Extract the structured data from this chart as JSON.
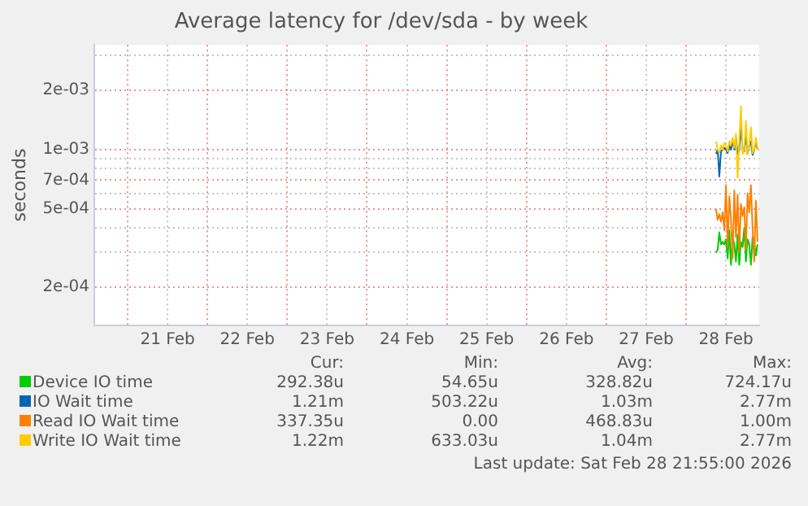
{
  "chart_data": {
    "type": "line",
    "title": "Average latency for /dev/sda - by week",
    "ylabel": "seconds",
    "log": "y",
    "grid": true,
    "legend": "bottom",
    "marker": "none",
    "line_style": "solid",
    "x": [
      "2026-02-28T09:00",
      "2026-02-28T09:30",
      "2026-02-28T10:00",
      "2026-02-28T10:30",
      "2026-02-28T11:00",
      "2026-02-28T11:30",
      "2026-02-28T12:00",
      "2026-02-28T12:30",
      "2026-02-28T13:00",
      "2026-02-28T13:30",
      "2026-02-28T14:00",
      "2026-02-28T14:30",
      "2026-02-28T15:00",
      "2026-02-28T15:30",
      "2026-02-28T16:00",
      "2026-02-28T16:30",
      "2026-02-28T17:00",
      "2026-02-28T17:30",
      "2026-02-28T18:00",
      "2026-02-28T18:30",
      "2026-02-28T19:00",
      "2026-02-28T19:30",
      "2026-02-28T20:00",
      "2026-02-28T20:30",
      "2026-02-28T21:00",
      "2026-02-28T21:30"
    ],
    "xlim": [
      "2026-02-20T14:00",
      "2026-02-28T22:00"
    ],
    "xticks": [
      {
        "value": "2026-02-21T00:00",
        "label": null
      },
      {
        "value": "2026-02-21T12:00",
        "label": "21 Feb"
      },
      {
        "value": "2026-02-22T00:00",
        "label": null
      },
      {
        "value": "2026-02-22T12:00",
        "label": "22 Feb"
      },
      {
        "value": "2026-02-23T00:00",
        "label": null
      },
      {
        "value": "2026-02-23T12:00",
        "label": "23 Feb"
      },
      {
        "value": "2026-02-24T00:00",
        "label": null
      },
      {
        "value": "2026-02-24T12:00",
        "label": "24 Feb"
      },
      {
        "value": "2026-02-25T00:00",
        "label": null
      },
      {
        "value": "2026-02-25T12:00",
        "label": "25 Feb"
      },
      {
        "value": "2026-02-26T00:00",
        "label": null
      },
      {
        "value": "2026-02-26T12:00",
        "label": "26 Feb"
      },
      {
        "value": "2026-02-27T00:00",
        "label": null
      },
      {
        "value": "2026-02-27T12:00",
        "label": "27 Feb"
      },
      {
        "value": "2026-02-28T00:00",
        "label": null
      },
      {
        "value": "2026-02-28T12:00",
        "label": "28 Feb"
      }
    ],
    "ylim": [
      0.000128,
      0.0034
    ],
    "yticks": [
      {
        "value": 0.0002,
        "label": "2e-04"
      },
      {
        "value": 0.0003,
        "label": null
      },
      {
        "value": 0.0004,
        "label": null
      },
      {
        "value": 0.0005,
        "label": "5e-04"
      },
      {
        "value": 0.0006,
        "label": null
      },
      {
        "value": 0.0007,
        "label": "7e-04"
      },
      {
        "value": 0.0008,
        "label": null
      },
      {
        "value": 0.0009,
        "label": null
      },
      {
        "value": 0.001,
        "label": "1e-03"
      },
      {
        "value": 0.002,
        "label": "2e-03"
      },
      {
        "value": 0.003,
        "label": null
      }
    ],
    "series": [
      {
        "name": "Device IO time",
        "color": "#00cc00",
        "values": [
          0.0003,
          0.00031,
          0.00038,
          0.00033,
          0.00034,
          0.00033,
          0.00035,
          0.00028,
          0.00039,
          0.00026,
          0.00036,
          0.00033,
          0.00027,
          0.00037,
          0.00026,
          0.00034,
          0.00032,
          0.0004,
          0.00027,
          0.00035,
          0.00033,
          0.00026,
          0.00036,
          0.00034,
          0.00029,
          0.00033
        ]
      },
      {
        "name": "IO Wait time",
        "color": "#0066b3",
        "values": [
          0.00095,
          0.001,
          0.00073,
          0.00098,
          0.001,
          0.00102,
          0.001,
          0.00096,
          0.00105,
          0.001,
          0.0011,
          0.001,
          0.00115,
          0.00095,
          0.001,
          0.0013,
          0.001,
          0.00098,
          0.0012,
          0.00095,
          0.00105,
          0.0011,
          0.00094,
          0.001,
          0.0011,
          0.001
        ]
      },
      {
        "name": "Read IO Wait time",
        "color": "#ff8000",
        "values": [
          0.0005,
          0.00044,
          0.00047,
          0.00043,
          0.00048,
          0.00039,
          0.00066,
          0.00032,
          0.00058,
          0.00044,
          0.00028,
          0.00062,
          0.00036,
          0.00059,
          0.0003,
          0.00053,
          0.00046,
          0.00051,
          0.00031,
          0.0006,
          0.00048,
          0.00066,
          0.0004,
          0.00027,
          0.00055,
          0.00034
        ]
      },
      {
        "name": "Write IO Wait time",
        "color": "#ffcc00",
        "values": [
          0.0011,
          0.001,
          0.00096,
          0.00105,
          0.001,
          0.00108,
          0.00105,
          0.00098,
          0.0011,
          0.00105,
          0.00115,
          0.00102,
          0.0012,
          0.00072,
          0.0011,
          0.00166,
          0.00095,
          0.001,
          0.0014,
          0.00094,
          0.00105,
          0.0013,
          0.00096,
          0.001,
          0.00115,
          0.001
        ]
      }
    ],
    "annotations": [
      "Cur:",
      "Min:",
      "Avg:",
      "Max:",
      "292.38u",
      "54.65u",
      "328.82u",
      "724.17u",
      "1.21m",
      "503.22u",
      "1.03m",
      "2.77m",
      "337.35u",
      "0.00",
      "468.83u",
      "1.00m",
      "1.22m",
      "633.03u",
      "1.04m",
      "2.77m",
      "Last update: Sat Feb 28 21:55:00 2026"
    ]
  }
}
